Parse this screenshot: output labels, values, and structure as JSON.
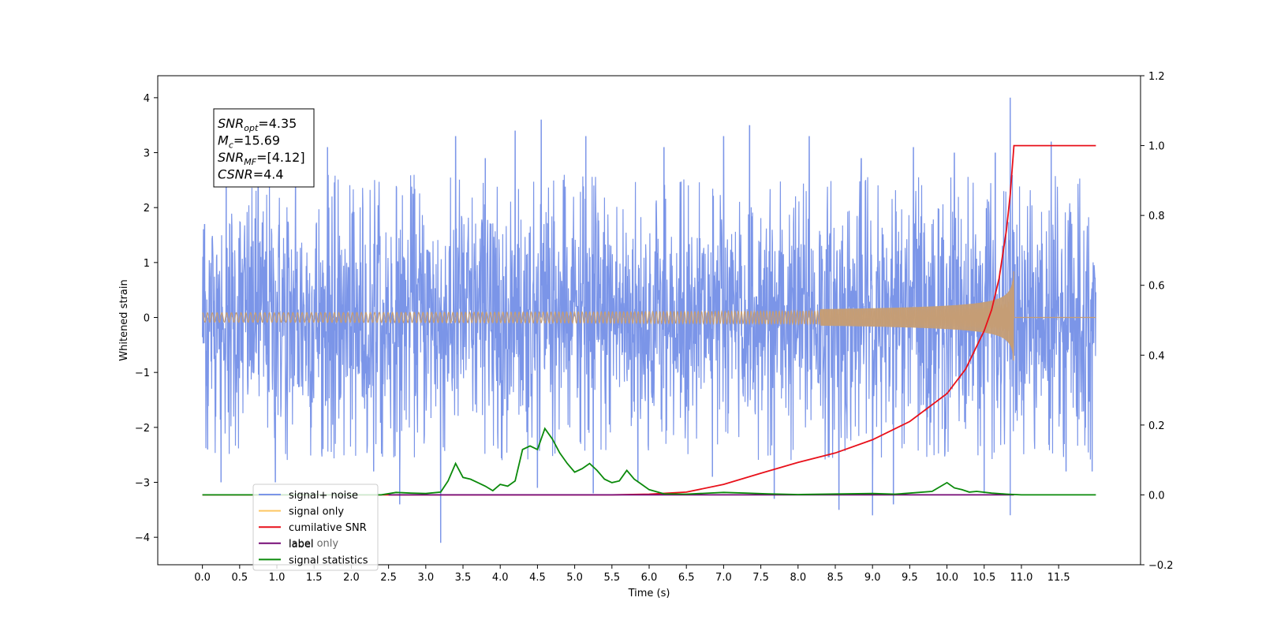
{
  "chart_data": {
    "type": "line",
    "xlabel": "Time (s)",
    "ylabel_left": "Whitened strain",
    "ylabel_right": "",
    "xlim": [
      -0.6,
      12.6
    ],
    "ylim_left": [
      -4.5,
      4.4
    ],
    "ylim_right": [
      -0.2,
      1.2
    ],
    "x_ticks": [
      0.0,
      0.5,
      1.0,
      1.5,
      2.0,
      2.5,
      3.0,
      3.5,
      4.0,
      4.5,
      5.0,
      5.5,
      6.0,
      6.5,
      7.0,
      7.5,
      8.0,
      8.5,
      9.0,
      9.5,
      10.0,
      10.5,
      11.0,
      11.5
    ],
    "x_tick_labels": [
      "0.0",
      "0.5",
      "1.0",
      "1.5",
      "2.0",
      "2.5",
      "3.0",
      "3.5",
      "4.0",
      "4.5",
      "5.0",
      "5.5",
      "6.0",
      "6.5",
      "7.0",
      "7.5",
      "8.0",
      "8.5",
      "9.0",
      "9.5",
      "10.0",
      "10.5",
      "11.0",
      "11.5"
    ],
    "y_ticks_left": [
      -4,
      -3,
      -2,
      -1,
      0,
      1,
      2,
      3,
      4
    ],
    "y_tick_labels_left": [
      "−4",
      "−3",
      "−2",
      "−1",
      "0",
      "1",
      "2",
      "3",
      "4"
    ],
    "y_ticks_right": [
      -0.2,
      0.0,
      0.2,
      0.4,
      0.6,
      0.8,
      1.0,
      1.2
    ],
    "y_tick_labels_right": [
      "−0.2",
      "0.0",
      "0.2",
      "0.4",
      "0.6",
      "0.8",
      "1.0",
      "1.2"
    ],
    "grid": false,
    "legend_position": "lower-left",
    "annotation": [
      {
        "main": "SNR",
        "sub": "opt",
        "rest": "=4.35"
      },
      {
        "main": "M",
        "sub": "c",
        "rest": "=15.69"
      },
      {
        "main": "SNR",
        "sub": "MF",
        "rest": "=[4.12]"
      },
      {
        "main": "CSNR",
        "sub": "",
        "rest": "=4.4"
      }
    ],
    "series": [
      {
        "name": "signal+ noise",
        "axis": "left",
        "color": "#7b95e8",
        "kind": "noise",
        "x_range": [
          0.0,
          12.0
        ],
        "typical_amplitude": 2.1,
        "peak_points": [
          [
            0.03,
            1.7
          ],
          [
            0.07,
            -2.4
          ],
          [
            0.25,
            -3.0
          ],
          [
            0.32,
            2.8
          ],
          [
            0.75,
            3.0
          ],
          [
            0.98,
            -3.0
          ],
          [
            1.25,
            2.9
          ],
          [
            1.68,
            3.1
          ],
          [
            2.3,
            -2.8
          ],
          [
            2.65,
            -3.4
          ],
          [
            3.2,
            -4.1
          ],
          [
            3.4,
            3.3
          ],
          [
            3.8,
            2.9
          ],
          [
            4.2,
            3.4
          ],
          [
            4.5,
            -3.1
          ],
          [
            4.55,
            3.6
          ],
          [
            5.25,
            -3.2
          ],
          [
            5.15,
            3.3
          ],
          [
            5.85,
            -3.0
          ],
          [
            6.2,
            3.1
          ],
          [
            6.85,
            -2.9
          ],
          [
            7.0,
            3.3
          ],
          [
            7.35,
            3.5
          ],
          [
            7.68,
            -3.3
          ],
          [
            8.15,
            3.3
          ],
          [
            8.55,
            -3.5
          ],
          [
            8.85,
            2.9
          ],
          [
            9.0,
            -3.6
          ],
          [
            9.28,
            -3.4
          ],
          [
            9.55,
            3.1
          ],
          [
            10.1,
            3.0
          ],
          [
            10.5,
            -3.2
          ],
          [
            10.65,
            3.0
          ],
          [
            10.85,
            4.0
          ],
          [
            10.85,
            -3.6
          ],
          [
            11.4,
            3.2
          ],
          [
            11.6,
            -2.8
          ],
          [
            11.95,
            -2.8
          ]
        ]
      },
      {
        "name": "signal only",
        "axis": "left",
        "color": "#c59d75",
        "kind": "chirp",
        "x_range": [
          0.0,
          12.0
        ],
        "merger_time": 10.9,
        "amplitude_at_merger": 0.9
      },
      {
        "name": "cumilative SNR",
        "axis": "right",
        "color": "#e8101a",
        "x": [
          0.0,
          5.5,
          6.0,
          6.5,
          7.0,
          7.5,
          8.0,
          8.5,
          9.0,
          9.5,
          10.0,
          10.25,
          10.5,
          10.6,
          10.7,
          10.8,
          10.85,
          10.9,
          11.0,
          11.5,
          12.0
        ],
        "y": [
          0.0,
          0.0,
          0.002,
          0.008,
          0.03,
          0.062,
          0.093,
          0.12,
          0.158,
          0.21,
          0.29,
          0.36,
          0.47,
          0.53,
          0.62,
          0.76,
          0.86,
          1.0,
          1.0,
          1.0,
          1.0
        ]
      },
      {
        "name": "label",
        "axis": "right",
        "color": "#760a76",
        "x": [
          2.5,
          10.9
        ],
        "y": [
          0.0,
          0.0
        ]
      },
      {
        "name": "signal statistics",
        "axis": "right",
        "color": "#0b8a0b",
        "x": [
          0.0,
          2.4,
          2.6,
          2.8,
          3.0,
          3.2,
          3.3,
          3.4,
          3.5,
          3.6,
          3.7,
          3.8,
          3.9,
          4.0,
          4.1,
          4.2,
          4.3,
          4.4,
          4.5,
          4.6,
          4.7,
          4.8,
          4.9,
          5.0,
          5.1,
          5.2,
          5.3,
          5.4,
          5.5,
          5.6,
          5.7,
          5.8,
          5.9,
          6.0,
          6.2,
          6.5,
          7.0,
          7.3,
          7.6,
          8.0,
          9.0,
          9.3,
          9.5,
          9.8,
          10.0,
          10.1,
          10.2,
          10.3,
          10.4,
          10.6,
          10.8,
          11.0,
          12.0
        ],
        "y": [
          0.0,
          0.0,
          0.007,
          0.005,
          0.004,
          0.008,
          0.04,
          0.09,
          0.05,
          0.045,
          0.035,
          0.025,
          0.012,
          0.03,
          0.025,
          0.04,
          0.13,
          0.14,
          0.13,
          0.19,
          0.16,
          0.12,
          0.09,
          0.065,
          0.075,
          0.09,
          0.07,
          0.045,
          0.035,
          0.04,
          0.07,
          0.045,
          0.03,
          0.015,
          0.003,
          0.002,
          0.007,
          0.005,
          0.003,
          0.001,
          0.004,
          0.002,
          0.005,
          0.01,
          0.035,
          0.02,
          0.015,
          0.008,
          0.01,
          0.005,
          0.002,
          0.0,
          0.0
        ]
      },
      {
        "name": "label only",
        "axis": "right",
        "color": "#fdc663",
        "x": [],
        "y": []
      }
    ],
    "legend": [
      {
        "label": "signal+ noise",
        "color": "#7b95e8"
      },
      {
        "label": "signal only",
        "color": "#fdc663"
      },
      {
        "label": "cumilative SNR",
        "color": "#e8101a"
      },
      {
        "label": "label",
        "color": "#760a76"
      },
      {
        "label": "signal statistics",
        "color": "#0b8a0b"
      }
    ],
    "legend_overlapped_label": "label only"
  }
}
